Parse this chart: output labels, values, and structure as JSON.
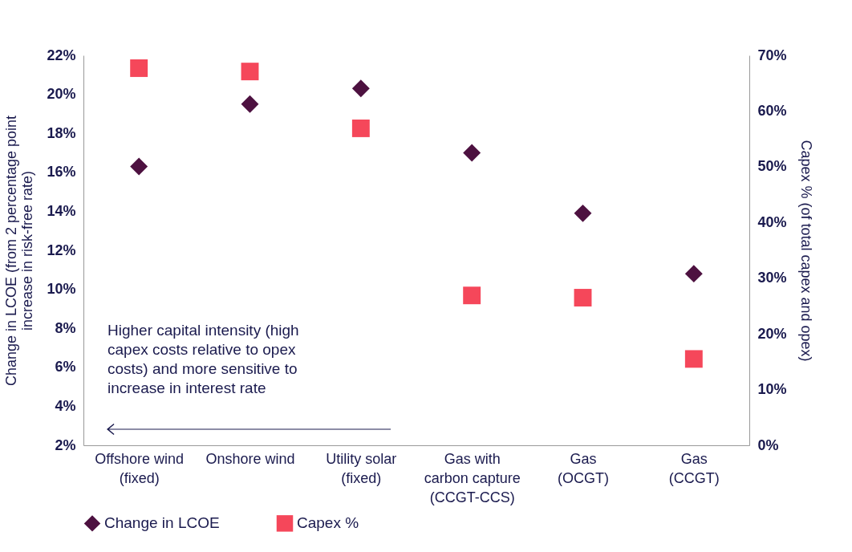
{
  "chart_data": {
    "type": "scatter",
    "categories": [
      "Offshore wind (fixed)",
      "Onshore wind",
      "Utility solar (fixed)",
      "Gas with carbon capture (CCGT-CCS)",
      "Gas (OCGT)",
      "Gas (CCGT)"
    ],
    "series": [
      {
        "name": "Change in LCOE",
        "color": "#4d1140",
        "marker": "diamond",
        "values": [
          16.3,
          19.5,
          20.3,
          17.0,
          13.9,
          10.8
        ]
      },
      {
        "name": "Capex %",
        "color": "#f5475a",
        "marker": "square",
        "axis": "y2",
        "values": [
          67.7,
          67.1,
          56.9,
          26.9,
          26.5,
          15.5
        ]
      }
    ],
    "ylabel": "Change in LCOE (from 2 percentage point increase in risk-free rate)",
    "y2label": "Capex % (of total capex and opex)",
    "ylim": [
      2,
      22
    ],
    "yticks": [
      {
        "value": 2,
        "label": "2%"
      },
      {
        "value": 4,
        "label": "4%"
      },
      {
        "value": 6,
        "label": "6%"
      },
      {
        "value": 8,
        "label": "8%"
      },
      {
        "value": 10,
        "label": "10%"
      },
      {
        "value": 12,
        "label": "12%"
      },
      {
        "value": 14,
        "label": "14%"
      },
      {
        "value": 16,
        "label": "16%"
      },
      {
        "value": 18,
        "label": "18%"
      },
      {
        "value": 20,
        "label": "20%"
      },
      {
        "value": 22,
        "label": "22%"
      }
    ],
    "y2lim": [
      0,
      70
    ],
    "y2ticks": [
      {
        "value": 0,
        "label": "0%"
      },
      {
        "value": 10,
        "label": "10%"
      },
      {
        "value": 20,
        "label": "20%"
      },
      {
        "value": 30,
        "label": "30%"
      },
      {
        "value": 40,
        "label": "40%"
      },
      {
        "value": 50,
        "label": "50%"
      },
      {
        "value": 60,
        "label": "60%"
      },
      {
        "value": 70,
        "label": "70%"
      }
    ],
    "annotations": [
      "Higher capital intensity (high capex costs relative to opex costs) and more sensitive to increase in interest rate"
    ],
    "grid": false,
    "legend": "bottom"
  }
}
